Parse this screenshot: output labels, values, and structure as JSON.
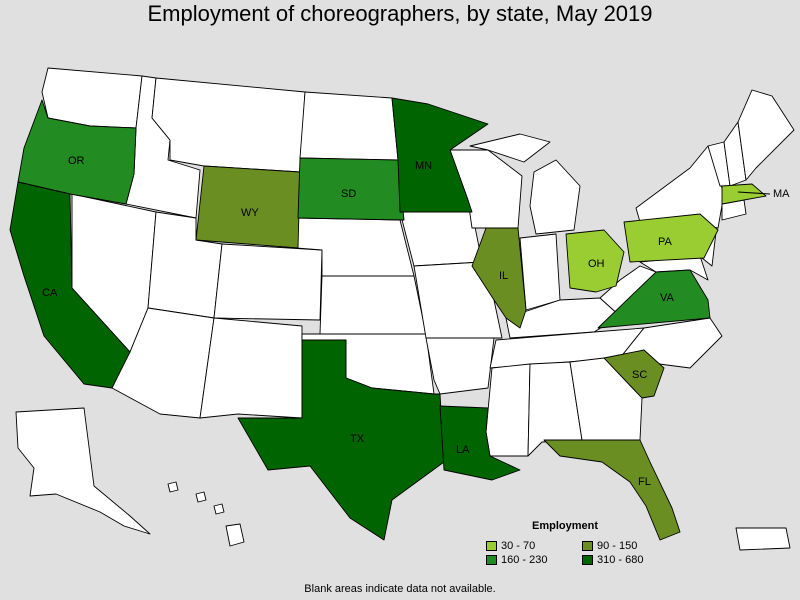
{
  "title": "Employment of choreographers, by state, May 2019",
  "legend": {
    "title": "Employment",
    "items": [
      {
        "label": "30 - 70",
        "color": "#9acd32"
      },
      {
        "label": "90 - 150",
        "color": "#6b8e23"
      },
      {
        "label": "160 - 230",
        "color": "#228b22"
      },
      {
        "label": "310 - 680",
        "color": "#006400"
      }
    ]
  },
  "footnote": "Blank areas indicate data not available.",
  "states": [
    {
      "abbr": "OR",
      "color": "#228b22"
    },
    {
      "abbr": "CA",
      "color": "#006400"
    },
    {
      "abbr": "WY",
      "color": "#6b8e23"
    },
    {
      "abbr": "SD",
      "color": "#228b22"
    },
    {
      "abbr": "MN",
      "color": "#006400"
    },
    {
      "abbr": "TX",
      "color": "#006400"
    },
    {
      "abbr": "LA",
      "color": "#006400"
    },
    {
      "abbr": "IL",
      "color": "#6b8e23"
    },
    {
      "abbr": "OH",
      "color": "#9acd32"
    },
    {
      "abbr": "PA",
      "color": "#9acd32"
    },
    {
      "abbr": "VA",
      "color": "#228b22"
    },
    {
      "abbr": "SC",
      "color": "#6b8e23"
    },
    {
      "abbr": "FL",
      "color": "#6b8e23"
    },
    {
      "abbr": "MA",
      "color": "#9acd32"
    }
  ]
}
